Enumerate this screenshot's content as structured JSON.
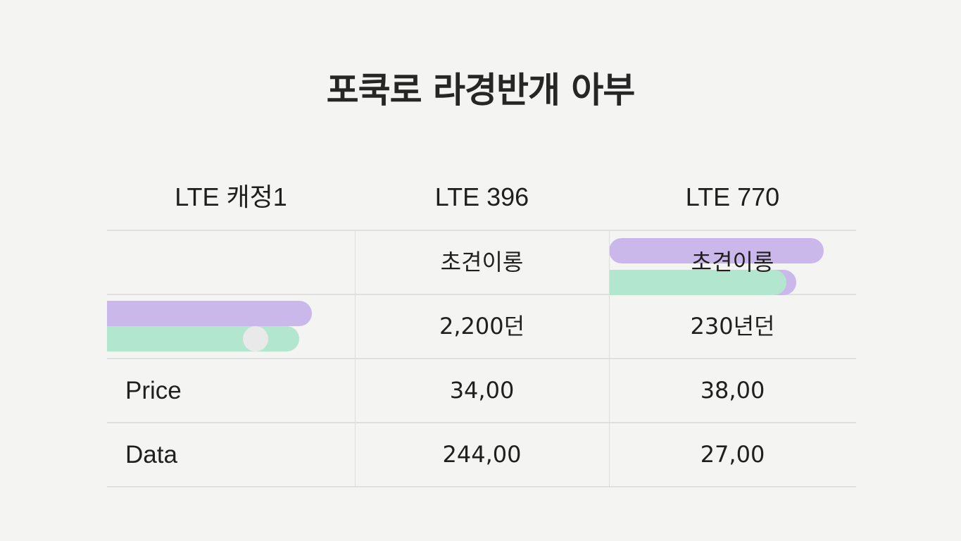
{
  "title": "포쿡로 라경반개 아부",
  "table": {
    "headers": [
      "LTE 캐정1",
      "LTE 396",
      "LTE 770"
    ],
    "rows": [
      {
        "label": "",
        "values": [
          "초견이롱",
          "초견이롱"
        ]
      },
      {
        "label": "",
        "values": [
          "2,200던",
          "230년던"
        ]
      },
      {
        "label": "Price",
        "values": [
          "34,00",
          "38,00"
        ]
      },
      {
        "label": "Data",
        "values": [
          "244,00",
          "27,00"
        ]
      }
    ]
  },
  "colors": {
    "bar_purple": "#cbb8ea",
    "bar_green": "#b2e6cf",
    "grid_line": "#e0e0e0",
    "background": "#f4f4f3"
  }
}
